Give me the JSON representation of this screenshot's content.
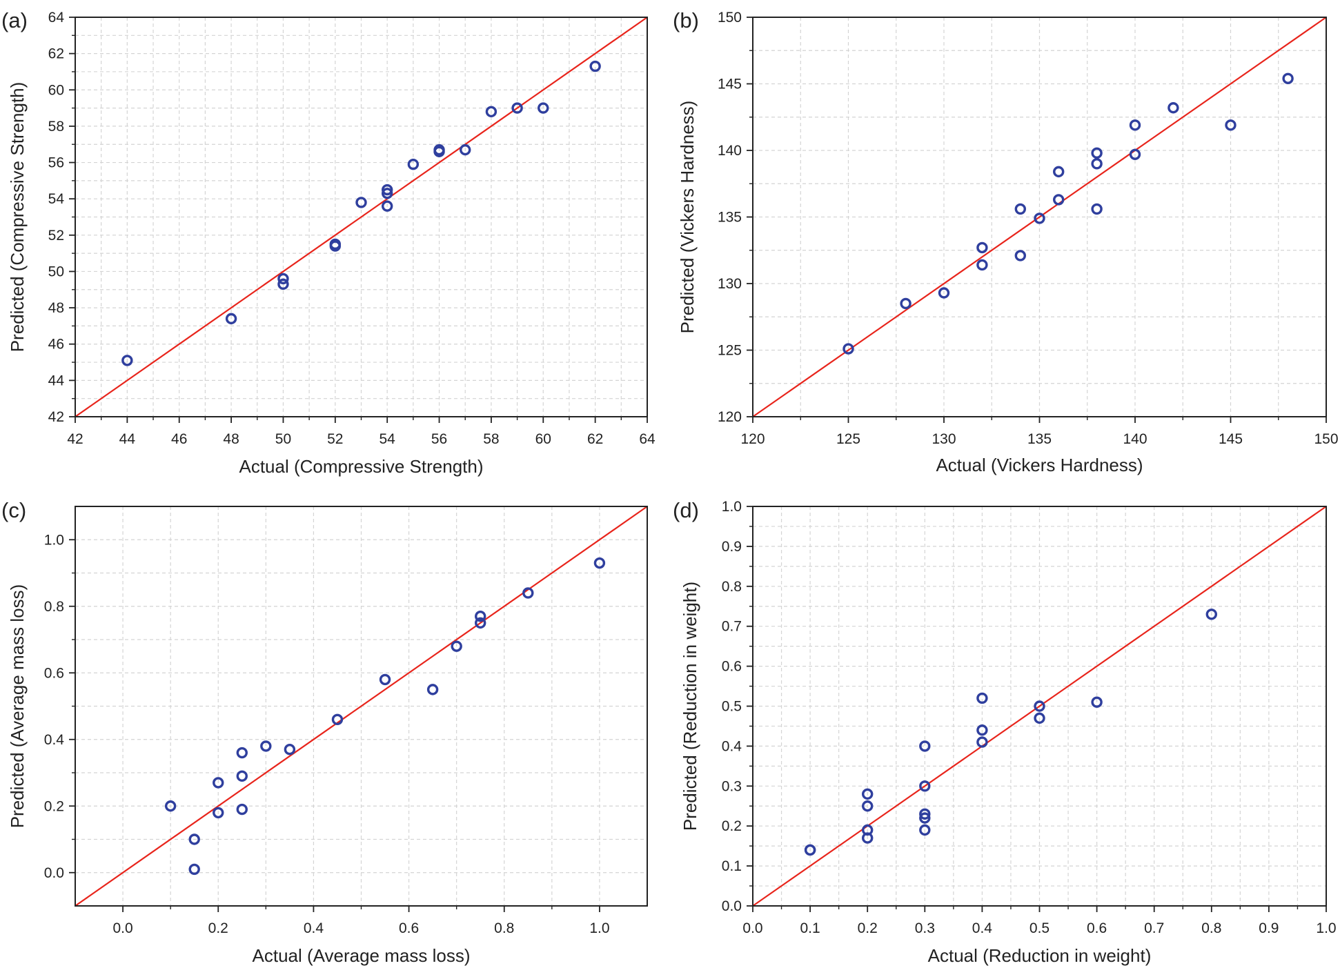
{
  "figure": {
    "colors": {
      "points": "#2f3f9e",
      "line": "#e8241b",
      "grid": "#d4d4d4",
      "axis": "#222222"
    }
  },
  "chart_data": [
    {
      "panel_label": "(a)",
      "type": "scatter",
      "xlabel": "Actual (Compressive Strength)",
      "ylabel": "Predicted (Compressive Strength)",
      "xlim": [
        42,
        64
      ],
      "ylim": [
        42,
        64
      ],
      "xticks": [
        "42",
        "44",
        "46",
        "48",
        "50",
        "52",
        "54",
        "56",
        "58",
        "60",
        "62",
        "64"
      ],
      "yticks": [
        "42",
        "44",
        "46",
        "48",
        "50",
        "52",
        "54",
        "56",
        "58",
        "60",
        "62",
        "64"
      ],
      "grid": true,
      "reference_line": "y = x",
      "points": [
        [
          44,
          45.1
        ],
        [
          48,
          47.4
        ],
        [
          50,
          49.6
        ],
        [
          50,
          49.3
        ],
        [
          52,
          51.5
        ],
        [
          52,
          51.4
        ],
        [
          53,
          53.8
        ],
        [
          54,
          54.5
        ],
        [
          54,
          54.3
        ],
        [
          54,
          53.6
        ],
        [
          55,
          55.9
        ],
        [
          56,
          56.7
        ],
        [
          56,
          56.6
        ],
        [
          57,
          56.7
        ],
        [
          58,
          58.8
        ],
        [
          59,
          59.0
        ],
        [
          60,
          59.0
        ],
        [
          62,
          61.3
        ]
      ]
    },
    {
      "panel_label": "(b)",
      "type": "scatter",
      "xlabel": "Actual (Vickers Hardness)",
      "ylabel": "Predicted (Vickers Hardness)",
      "xlim": [
        120,
        150
      ],
      "ylim": [
        120,
        150
      ],
      "xticks": [
        "120",
        "125",
        "130",
        "135",
        "140",
        "145",
        "150"
      ],
      "yticks": [
        "120",
        "125",
        "130",
        "135",
        "140",
        "145",
        "150"
      ],
      "grid": true,
      "reference_line": "y = x",
      "points": [
        [
          125,
          125.1
        ],
        [
          128,
          128.5
        ],
        [
          130,
          129.3
        ],
        [
          132,
          132.7
        ],
        [
          132,
          131.4
        ],
        [
          134,
          135.6
        ],
        [
          134,
          132.1
        ],
        [
          135,
          134.9
        ],
        [
          136,
          138.4
        ],
        [
          136,
          136.3
        ],
        [
          138,
          139.8
        ],
        [
          138,
          139.0
        ],
        [
          138,
          135.6
        ],
        [
          140,
          141.9
        ],
        [
          140,
          139.7
        ],
        [
          142,
          143.2
        ],
        [
          145,
          141.9
        ],
        [
          148,
          145.4
        ]
      ]
    },
    {
      "panel_label": "(c)",
      "type": "scatter",
      "xlabel": "Actual (Average mass loss)",
      "ylabel": "Predicted (Average mass loss)",
      "xlim": [
        -0.1,
        1.1
      ],
      "ylim": [
        -0.1,
        1.1
      ],
      "xticks": [
        "0.0",
        "0.2",
        "0.4",
        "0.6",
        "0.8",
        "1.0"
      ],
      "yticks": [
        "0.0",
        "0.2",
        "0.4",
        "0.6",
        "0.8",
        "1.0"
      ],
      "grid": true,
      "reference_line": "y = x",
      "points": [
        [
          0.1,
          0.2
        ],
        [
          0.15,
          0.1
        ],
        [
          0.15,
          0.01
        ],
        [
          0.2,
          0.27
        ],
        [
          0.2,
          0.18
        ],
        [
          0.25,
          0.36
        ],
        [
          0.25,
          0.29
        ],
        [
          0.25,
          0.19
        ],
        [
          0.3,
          0.38
        ],
        [
          0.35,
          0.37
        ],
        [
          0.45,
          0.46
        ],
        [
          0.55,
          0.58
        ],
        [
          0.65,
          0.55
        ],
        [
          0.7,
          0.68
        ],
        [
          0.75,
          0.77
        ],
        [
          0.75,
          0.75
        ],
        [
          0.85,
          0.84
        ],
        [
          1.0,
          0.93
        ]
      ]
    },
    {
      "panel_label": "(d)",
      "type": "scatter",
      "xlabel": "Actual (Reduction in weight)",
      "ylabel": "Predicted (Reduction in weight)",
      "xlim": [
        0,
        1
      ],
      "ylim": [
        0,
        1
      ],
      "xticks": [
        "0.0",
        "0.1",
        "0.2",
        "0.3",
        "0.4",
        "0.5",
        "0.6",
        "0.7",
        "0.8",
        "0.9",
        "1.0"
      ],
      "yticks": [
        "0.0",
        "0.1",
        "0.2",
        "0.3",
        "0.4",
        "0.5",
        "0.6",
        "0.7",
        "0.8",
        "0.9",
        "1.0"
      ],
      "grid": true,
      "reference_line": "y = x",
      "points": [
        [
          0.1,
          0.14
        ],
        [
          0.1,
          0.14
        ],
        [
          0.2,
          0.28
        ],
        [
          0.2,
          0.25
        ],
        [
          0.2,
          0.19
        ],
        [
          0.2,
          0.17
        ],
        [
          0.3,
          0.4
        ],
        [
          0.3,
          0.3
        ],
        [
          0.3,
          0.23
        ],
        [
          0.3,
          0.22
        ],
        [
          0.3,
          0.19
        ],
        [
          0.4,
          0.52
        ],
        [
          0.4,
          0.44
        ],
        [
          0.4,
          0.41
        ],
        [
          0.5,
          0.5
        ],
        [
          0.5,
          0.47
        ],
        [
          0.6,
          0.51
        ],
        [
          0.8,
          0.73
        ]
      ]
    }
  ]
}
